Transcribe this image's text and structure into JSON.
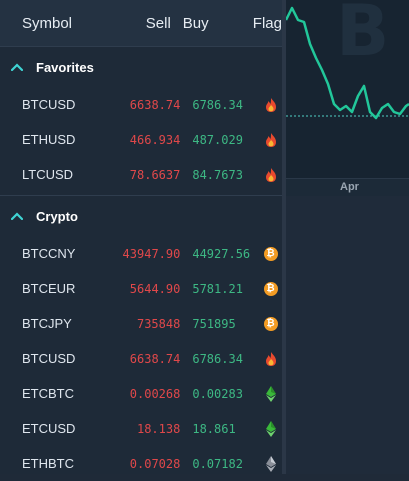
{
  "header": {
    "symbol": "Symbol",
    "sell": "Sell",
    "buy": "Buy",
    "flag": "Flag"
  },
  "sections": [
    {
      "title": "Favorites",
      "rows": [
        {
          "symbol": "BTCUSD",
          "sell": "6638.74",
          "buy": "6786.34",
          "flag_icon": "fire-icon"
        },
        {
          "symbol": "ETHUSD",
          "sell": "466.934",
          "buy": "487.029",
          "flag_icon": "fire-icon"
        },
        {
          "symbol": "LTCUSD",
          "sell": "78.6637",
          "buy": "84.7673",
          "flag_icon": "fire-icon"
        }
      ]
    },
    {
      "title": "Crypto",
      "rows": [
        {
          "symbol": "BTCCNY",
          "sell": "43947.90",
          "buy": "44927.56",
          "flag_icon": "bitcoin-icon"
        },
        {
          "symbol": "BTCEUR",
          "sell": "5644.90",
          "buy": "5781.21",
          "flag_icon": "bitcoin-icon"
        },
        {
          "symbol": "BTCJPY",
          "sell": "735848",
          "buy": "751895",
          "flag_icon": "bitcoin-icon"
        },
        {
          "symbol": "BTCUSD",
          "sell": "6638.74",
          "buy": "6786.34",
          "flag_icon": "fire-icon"
        },
        {
          "symbol": "ETCBTC",
          "sell": "0.00268",
          "buy": "0.00283",
          "flag_icon": "ethereum-classic-icon"
        },
        {
          "symbol": "ETCUSD",
          "sell": "18.138",
          "buy": "18.861",
          "flag_icon": "ethereum-classic-icon"
        },
        {
          "symbol": "ETHBTC",
          "sell": "0.07028",
          "buy": "0.07182",
          "flag_icon": "ethereum-icon"
        }
      ]
    }
  ],
  "chart": {
    "axis_label": "Apr",
    "watermark": "B",
    "line_color": "#22c79a",
    "price_line_color": "#4fd1c5"
  },
  "colors": {
    "sell": "#e0484a",
    "buy": "#3db884",
    "bitcoin": "#f39c24"
  }
}
